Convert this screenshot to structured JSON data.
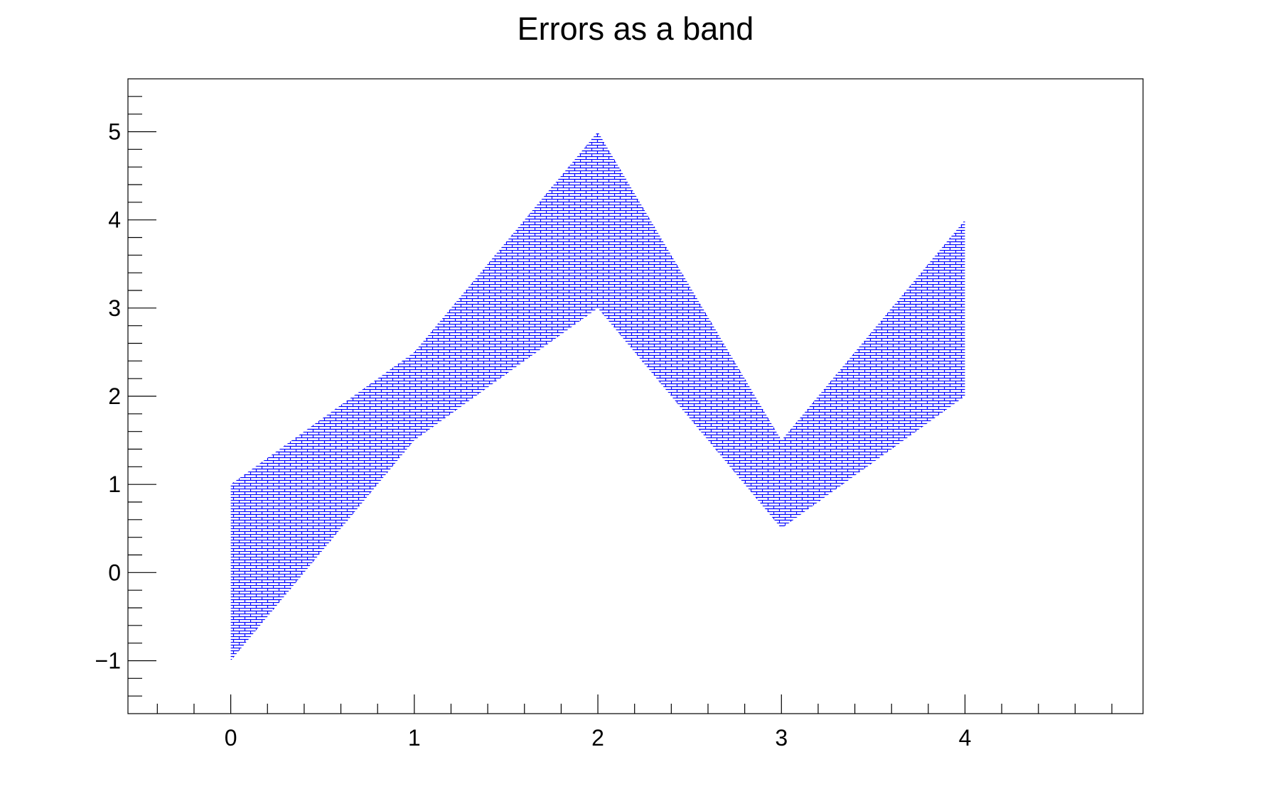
{
  "chart_data": {
    "type": "area",
    "title": "Errors as a band",
    "xlabel": "",
    "ylabel": "",
    "xlim": [
      -0.56,
      4.97
    ],
    "ylim": [
      -1.6,
      5.6
    ],
    "x": [
      0,
      1,
      2,
      3,
      4
    ],
    "y": [
      0,
      2,
      4,
      1,
      3
    ],
    "ey": [
      1,
      0.5,
      1,
      0.5,
      1
    ],
    "xticks": [
      "0",
      "1",
      "2",
      "3",
      "4"
    ],
    "yticks": [
      "−1",
      "0",
      "1",
      "2",
      "3",
      "4",
      "5"
    ],
    "grid": false,
    "fill_style": "brick-hatch",
    "colors": {
      "band": "#0000ff",
      "axis": "#000000"
    }
  }
}
